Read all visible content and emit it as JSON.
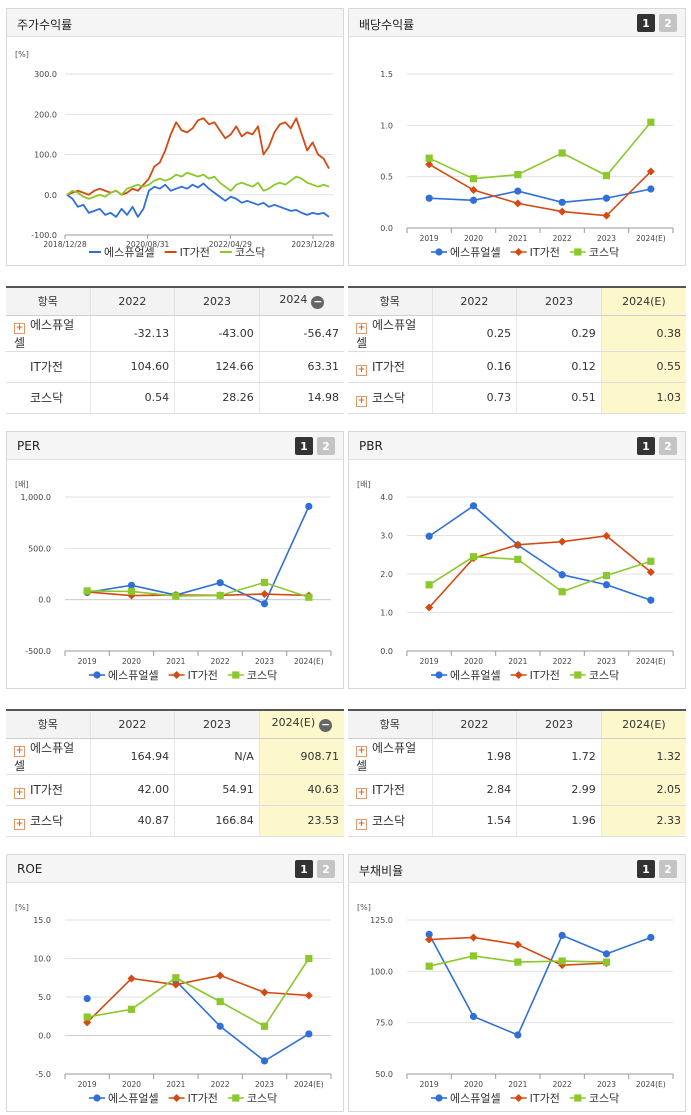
{
  "colors": {
    "blue": "#2f6fd9",
    "red": "#d44a12",
    "green": "#8bc82c"
  },
  "legend": [
    "에스퓨얼셀",
    "IT가전",
    "코스닥"
  ],
  "tabs": {
    "one": "1",
    "two": "2"
  },
  "charts": {
    "stock": {
      "title": "주가수익률",
      "chart_data": {
        "type": "line",
        "unit": "[%]",
        "ylim": [
          -100,
          300
        ],
        "yticks": [
          "300.0",
          "200.0",
          "100.0",
          "0.0",
          "-100.0"
        ],
        "xticks": [
          "2018/12/28",
          "2020/08/31",
          "2022/04/29",
          "2023/12/28"
        ],
        "series": [
          {
            "name": "에스퓨얼셀",
            "color": "blue",
            "values": [
              0,
              -10,
              -30,
              -25,
              -45,
              -40,
              -35,
              -50,
              -45,
              -55,
              -35,
              -50,
              -30,
              -55,
              -35,
              10,
              20,
              15,
              25,
              10,
              15,
              20,
              15,
              25,
              18,
              28,
              15,
              5,
              -5,
              -15,
              -5,
              -10,
              -20,
              -15,
              -20,
              -25,
              -20,
              -30,
              -25,
              -30,
              -35,
              -40,
              -38,
              -45,
              -50,
              -45,
              -48,
              -45,
              -55
            ]
          },
          {
            "name": "IT가전",
            "color": "red",
            "values": [
              0,
              5,
              10,
              5,
              0,
              10,
              15,
              10,
              5,
              10,
              0,
              5,
              15,
              10,
              25,
              40,
              70,
              80,
              110,
              150,
              180,
              160,
              155,
              165,
              185,
              190,
              175,
              180,
              160,
              140,
              150,
              170,
              145,
              155,
              150,
              170,
              100,
              120,
              155,
              175,
              180,
              165,
              190,
              150,
              110,
              130,
              100,
              90,
              65
            ]
          },
          {
            "name": "코스닥",
            "color": "green",
            "values": [
              0,
              10,
              5,
              -5,
              -10,
              -5,
              0,
              -5,
              5,
              10,
              0,
              15,
              20,
              25,
              20,
              25,
              35,
              40,
              35,
              40,
              50,
              45,
              55,
              50,
              45,
              50,
              40,
              45,
              30,
              20,
              10,
              25,
              30,
              25,
              20,
              30,
              10,
              15,
              25,
              30,
              25,
              35,
              45,
              40,
              30,
              25,
              20,
              25,
              20
            ]
          }
        ]
      }
    },
    "dividend": {
      "title": "배당수익률",
      "chart_data": {
        "type": "line",
        "ylim": [
          0,
          1.5
        ],
        "yticks": [
          "1.5",
          "1.0",
          "0.5",
          "0.0"
        ],
        "categories": [
          "2019",
          "2020",
          "2021",
          "2022",
          "2023",
          "2024(E)"
        ],
        "series": [
          {
            "name": "에스퓨얼셀",
            "color": "blue",
            "marker": "circle",
            "values": [
              0.29,
              0.27,
              0.36,
              0.25,
              0.29,
              0.38
            ]
          },
          {
            "name": "IT가전",
            "color": "red",
            "marker": "diamond",
            "values": [
              0.62,
              0.37,
              0.24,
              0.16,
              0.12,
              0.55
            ]
          },
          {
            "name": "코스닥",
            "color": "green",
            "marker": "square",
            "values": [
              0.68,
              0.48,
              0.52,
              0.73,
              0.51,
              1.03
            ]
          }
        ]
      }
    },
    "per": {
      "title": "PER",
      "chart_data": {
        "type": "line",
        "unit": "[배]",
        "ylim": [
          -500,
          1000
        ],
        "yticks": [
          "1,000.0",
          "500.0",
          "0.0",
          "-500.0"
        ],
        "categories": [
          "2019",
          "2020",
          "2021",
          "2022",
          "2023",
          "2024(E)"
        ],
        "series": [
          {
            "name": "에스퓨얼셀",
            "color": "blue",
            "marker": "circle",
            "values": [
              70,
              140,
              45,
              164.94,
              -40,
              908.71
            ]
          },
          {
            "name": "IT가전",
            "color": "red",
            "marker": "diamond",
            "values": [
              75,
              40,
              45,
              42.0,
              54.91,
              40.63
            ]
          },
          {
            "name": "코스닥",
            "color": "green",
            "marker": "square",
            "values": [
              85,
              80,
              35,
              40.87,
              166.84,
              23.53
            ]
          }
        ]
      }
    },
    "pbr": {
      "title": "PBR",
      "chart_data": {
        "type": "line",
        "unit": "[배]",
        "ylim": [
          0,
          4
        ],
        "yticks": [
          "4.0",
          "3.0",
          "2.0",
          "1.0",
          "0.0"
        ],
        "categories": [
          "2019",
          "2020",
          "2021",
          "2022",
          "2023",
          "2024(E)"
        ],
        "series": [
          {
            "name": "에스퓨얼셀",
            "color": "blue",
            "marker": "circle",
            "values": [
              2.98,
              3.77,
              2.75,
              1.98,
              1.72,
              1.32
            ]
          },
          {
            "name": "IT가전",
            "color": "red",
            "marker": "diamond",
            "values": [
              1.13,
              2.41,
              2.76,
              2.84,
              2.99,
              2.05
            ]
          },
          {
            "name": "코스닥",
            "color": "green",
            "marker": "square",
            "values": [
              1.72,
              2.45,
              2.38,
              1.54,
              1.96,
              2.33
            ]
          }
        ]
      }
    },
    "roe": {
      "title": "ROE",
      "chart_data": {
        "type": "line",
        "unit": "[%]",
        "ylim": [
          -5,
          15
        ],
        "yticks": [
          "15.0",
          "10.0",
          "5.0",
          "0.0",
          "-5.0"
        ],
        "categories": [
          "2019",
          "2020",
          "2021",
          "2022",
          "2023",
          "2024(E)"
        ],
        "series": [
          {
            "name": "에스퓨얼셀",
            "color": "blue",
            "marker": "circle",
            "values": [
              4.8,
              null,
              7.1,
              1.2,
              -3.3,
              0.2
            ]
          },
          {
            "name": "IT가전",
            "color": "red",
            "marker": "diamond",
            "values": [
              1.7,
              7.4,
              6.6,
              7.8,
              5.6,
              5.2
            ]
          },
          {
            "name": "코스닥",
            "color": "green",
            "marker": "square",
            "values": [
              2.4,
              3.4,
              7.5,
              4.4,
              1.2,
              10.0
            ]
          }
        ]
      }
    },
    "debt": {
      "title": "부채비율",
      "chart_data": {
        "type": "line",
        "unit": "[%]",
        "ylim": [
          50,
          125
        ],
        "yticks": [
          "125.0",
          "100.0",
          "75.0",
          "50.0"
        ],
        "categories": [
          "2019",
          "2020",
          "2021",
          "2022",
          "2023",
          "2024(E)"
        ],
        "series": [
          {
            "name": "에스퓨얼셀",
            "color": "blue",
            "marker": "circle",
            "values": [
              118,
              78,
              69,
              117.5,
              108.5,
              116.5
            ]
          },
          {
            "name": "IT가전",
            "color": "red",
            "marker": "diamond",
            "values": [
              115.5,
              116.5,
              113,
              103,
              104,
              null
            ]
          },
          {
            "name": "코스닥",
            "color": "green",
            "marker": "square",
            "values": [
              102.5,
              107.5,
              104.5,
              105,
              104.5,
              null
            ]
          }
        ]
      }
    }
  },
  "tables": {
    "stock": {
      "header": [
        "항목",
        "2022",
        "2023",
        "2024"
      ],
      "rows": [
        {
          "name": "에스퓨얼셀",
          "vals": [
            "-32.13",
            "-43.00",
            "-56.47"
          ]
        },
        {
          "name": "IT가전",
          "vals": [
            "104.60",
            "124.66",
            "63.31"
          ]
        },
        {
          "name": "코스닥",
          "vals": [
            "0.54",
            "28.26",
            "14.98"
          ]
        }
      ]
    },
    "dividend": {
      "header": [
        "항목",
        "2022",
        "2023",
        "2024(E)"
      ],
      "rows": [
        {
          "name": "에스퓨얼셀",
          "vals": [
            "0.25",
            "0.29",
            "0.38"
          ]
        },
        {
          "name": "IT가전",
          "vals": [
            "0.16",
            "0.12",
            "0.55"
          ]
        },
        {
          "name": "코스닥",
          "vals": [
            "0.73",
            "0.51",
            "1.03"
          ]
        }
      ]
    },
    "per": {
      "header": [
        "항목",
        "2022",
        "2023",
        "2024(E)"
      ],
      "rows": [
        {
          "name": "에스퓨얼셀",
          "vals": [
            "164.94",
            "N/A",
            "908.71"
          ]
        },
        {
          "name": "IT가전",
          "vals": [
            "42.00",
            "54.91",
            "40.63"
          ]
        },
        {
          "name": "코스닥",
          "vals": [
            "40.87",
            "166.84",
            "23.53"
          ]
        }
      ]
    },
    "pbr": {
      "header": [
        "항목",
        "2022",
        "2023",
        "2024(E)"
      ],
      "rows": [
        {
          "name": "에스퓨얼셀",
          "vals": [
            "1.98",
            "1.72",
            "1.32"
          ]
        },
        {
          "name": "IT가전",
          "vals": [
            "2.84",
            "2.99",
            "2.05"
          ]
        },
        {
          "name": "코스닥",
          "vals": [
            "1.54",
            "1.96",
            "2.33"
          ]
        }
      ]
    }
  }
}
